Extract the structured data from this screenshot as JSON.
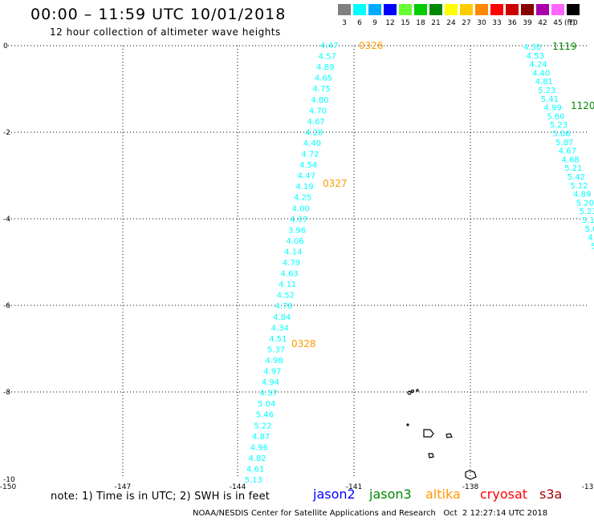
{
  "header": {
    "title": "00:00 – 11:59 UTC 10/01/2018",
    "subtitle": "12 hour collection of altimeter wave heights"
  },
  "legend": {
    "unit": "(ft)",
    "items": [
      {
        "label": "3",
        "color": "#808080"
      },
      {
        "label": "6",
        "color": "#00ffff"
      },
      {
        "label": "9",
        "color": "#00aaff"
      },
      {
        "label": "12",
        "color": "#0000ff"
      },
      {
        "label": "15",
        "color": "#66ff33"
      },
      {
        "label": "18",
        "color": "#00cc00"
      },
      {
        "label": "21",
        "color": "#008800"
      },
      {
        "label": "24",
        "color": "#ffff00"
      },
      {
        "label": "27",
        "color": "#ffcc00"
      },
      {
        "label": "30",
        "color": "#ff8800"
      },
      {
        "label": "33",
        "color": "#ff0000"
      },
      {
        "label": "36",
        "color": "#cc0000"
      },
      {
        "label": "39",
        "color": "#880000"
      },
      {
        "label": "42",
        "color": "#aa00aa"
      },
      {
        "label": "45",
        "color": "#ff66ff"
      },
      {
        "label": "70",
        "color": "#000000"
      }
    ]
  },
  "map": {
    "x_ticks": [
      "-150",
      "-147",
      "-144",
      "-141",
      "-138",
      "-13"
    ],
    "y_ticks": [
      "0",
      "-2",
      "-4",
      "-6",
      "-8",
      "-10"
    ],
    "track_color": "#00ffff",
    "track_left": [
      "4.47",
      "4.57",
      "4.89",
      "4.65",
      "4.75",
      "4.80",
      "4.70",
      "4.67",
      "4.28",
      "4.40",
      "4.72",
      "4.54",
      "4.47",
      "4.19",
      "4.25",
      "4.00",
      "4.07",
      "3.96",
      "4.06",
      "4.14",
      "4.79",
      "4.63",
      "4.11",
      "4.52",
      "4.70",
      "4.84",
      "4.34",
      "4.51",
      "5.37",
      "4.98",
      "4.97",
      "4.94",
      "4.57",
      "5.04",
      "5.46",
      "5.22",
      "4.87",
      "4.96",
      "4.82",
      "4.61",
      "5.13"
    ],
    "track_right": [
      "4.30",
      "4.53",
      "4.24",
      "4.40",
      "4.81",
      "5.23",
      "5.41",
      "4.99",
      "5.60",
      "5.23",
      "5.06",
      "5.87",
      "4.67",
      "4.68",
      "5.21",
      "5.42",
      "5.12",
      "4.89",
      "5.20",
      "5.23",
      "5.1",
      "5.0",
      "4.",
      "5"
    ],
    "pass_labels": [
      {
        "text": "0326",
        "color": "#ff9900"
      },
      {
        "text": "0327",
        "color": "#ff9900"
      },
      {
        "text": "0328",
        "color": "#ff9900"
      },
      {
        "text": "1119",
        "color": "#008800"
      },
      {
        "text": "1120",
        "color": "#008800"
      }
    ]
  },
  "note": "note: 1) Time is in UTC; 2) SWH is in feet",
  "satellites": [
    {
      "name": "jason2",
      "color": "#0000ff"
    },
    {
      "name": "jason3",
      "color": "#008800"
    },
    {
      "name": "altika",
      "color": "#ff9900"
    },
    {
      "name": "cryosat",
      "color": "#ff0000"
    },
    {
      "name": "s3a",
      "color": "#aa0000"
    }
  ],
  "footer": "NOAA/NESDIS Center for Satellite Applications and Research   Oct  2 12:27:14 UTC 2018"
}
